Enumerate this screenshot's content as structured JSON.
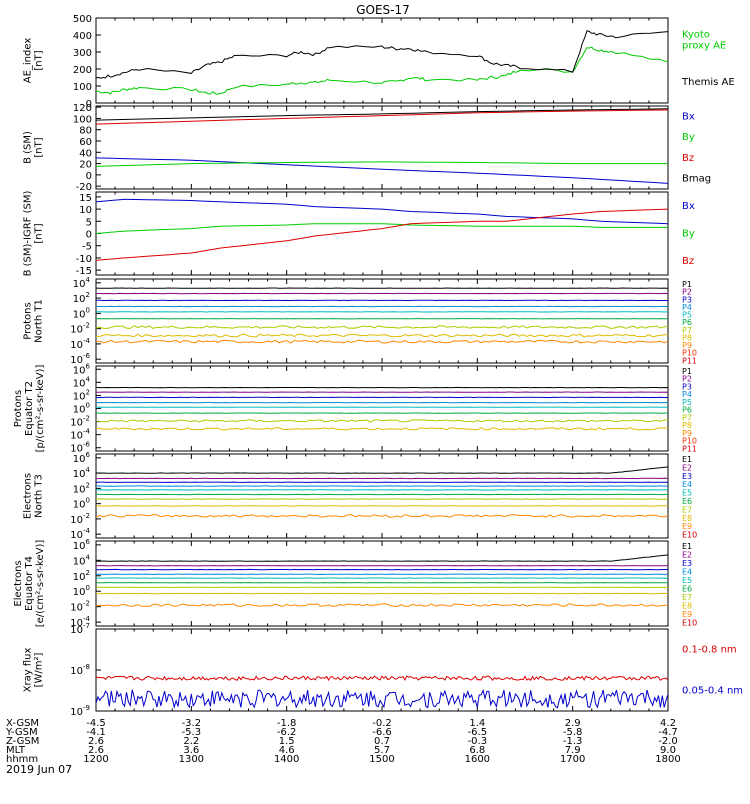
{
  "title": "GOES-17",
  "date": "2019 Jun 07",
  "colors": {
    "black": "#000000",
    "red": "#dd0000",
    "green": "#00cc00",
    "blue": "#0000cc",
    "p_channels": [
      "#000000",
      "#880088",
      "#0000cc",
      "#0088dd",
      "#00bbbb",
      "#00aa44",
      "#aacc00",
      "#ddbb00",
      "#ff8800",
      "#ee3300",
      "#cc0000"
    ],
    "e_channels": [
      "#000000",
      "#880088",
      "#0000cc",
      "#0088dd",
      "#00bbbb",
      "#00aa44",
      "#aacc00",
      "#ddbb00",
      "#ff8800",
      "#cc0000"
    ]
  },
  "chart_data": [
    {
      "id": "ae",
      "type": "line",
      "ylabel": [
        "AE_index",
        "[nT]"
      ],
      "ylim": [
        0,
        500
      ],
      "yticks": [
        "0",
        "100",
        "200",
        "300",
        "400",
        "500"
      ],
      "series": [
        {
          "name": "Kyoto proxy AE",
          "legend": [
            "Kyoto",
            "proxy AE"
          ],
          "color": "#00cc00",
          "x": [
            1200,
            1215,
            1230,
            1245,
            1300,
            1315,
            1330,
            1345,
            1400,
            1415,
            1430,
            1445,
            1500,
            1515,
            1530,
            1545,
            1600,
            1615,
            1630,
            1645,
            1700,
            1715,
            1730,
            1745,
            1800
          ],
          "y": [
            70,
            60,
            80,
            90,
            80,
            60,
            55,
            95,
            110,
            120,
            120,
            135,
            120,
            125,
            150,
            140,
            135,
            150,
            160,
            200,
            185,
            330,
            310,
            300,
            240
          ]
        },
        {
          "name": "Themis AE",
          "legend": [
            "Themis AE"
          ],
          "color": "#000000",
          "x": [
            1200,
            1215,
            1230,
            1245,
            1300,
            1315,
            1330,
            1345,
            1400,
            1415,
            1430,
            1445,
            1500,
            1515,
            1530,
            1545,
            1600,
            1615,
            1630,
            1645,
            1700,
            1715,
            1730,
            1745,
            1800
          ],
          "y": [
            145,
            160,
            180,
            200,
            175,
            220,
            240,
            275,
            280,
            300,
            285,
            330,
            330,
            320,
            320,
            300,
            280,
            235,
            220,
            210,
            185,
            420,
            400,
            390,
            420
          ]
        }
      ]
    },
    {
      "id": "bsm",
      "type": "line",
      "ylabel": [
        "B (SM)",
        "[nT]"
      ],
      "ylim": [
        -25,
        122
      ],
      "ytickvals": [
        -20,
        0,
        20,
        40,
        60,
        80,
        100,
        120
      ],
      "yticks": [
        "-20",
        "0",
        "20",
        "40",
        "60",
        "80",
        "100",
        "120"
      ],
      "series": [
        {
          "name": "Bx",
          "legend": [
            "Bx"
          ],
          "color": "#0000cc",
          "x": [
            1200,
            1300,
            1400,
            1500,
            1600,
            1700,
            1800
          ],
          "y": [
            30,
            26,
            18,
            10,
            3,
            -5,
            -15
          ]
        },
        {
          "name": "By",
          "legend": [
            "By"
          ],
          "color": "#00cc00",
          "x": [
            1200,
            1300,
            1400,
            1500,
            1600,
            1700,
            1800
          ],
          "y": [
            15,
            20,
            22,
            23,
            22,
            20,
            20
          ]
        },
        {
          "name": "Bz",
          "legend": [
            "Bz"
          ],
          "color": "#dd0000",
          "x": [
            1200,
            1300,
            1400,
            1500,
            1600,
            1700,
            1800
          ],
          "y": [
            90,
            95,
            100,
            105,
            110,
            113,
            115
          ]
        },
        {
          "name": "Bmag",
          "legend": [
            "Bmag"
          ],
          "color": "#000000",
          "x": [
            1200,
            1300,
            1400,
            1500,
            1600,
            1700,
            1800
          ],
          "y": [
            97,
            101,
            105,
            108,
            112,
            115,
            117
          ]
        }
      ]
    },
    {
      "id": "bigrf",
      "type": "line",
      "ylabel": [
        "B (SM)-IGRF (SM)",
        "[nT]"
      ],
      "ylim": [
        -17,
        17
      ],
      "ytickvals": [
        -15,
        -10,
        -5,
        0,
        5,
        10,
        15
      ],
      "yticks": [
        "-15",
        "-10",
        "-5",
        "0",
        "5",
        "10",
        "15"
      ],
      "series": [
        {
          "name": "Bx",
          "legend": [
            "Bx"
          ],
          "color": "#0000cc",
          "x": [
            1200,
            1230,
            1300,
            1330,
            1400,
            1430,
            1500,
            1530,
            1600,
            1630,
            1700,
            1730,
            1800
          ],
          "y": [
            13,
            14,
            13.5,
            13,
            12,
            11,
            10,
            9,
            8,
            7,
            6,
            5,
            4
          ]
        },
        {
          "name": "By",
          "legend": [
            "By"
          ],
          "color": "#00cc00",
          "x": [
            1200,
            1230,
            1300,
            1330,
            1400,
            1430,
            1500,
            1530,
            1600,
            1630,
            1700,
            1730,
            1800
          ],
          "y": [
            0,
            1,
            2,
            3,
            3.5,
            4,
            4,
            3.5,
            3,
            3,
            3,
            2.5,
            2.5
          ]
        },
        {
          "name": "Bz",
          "legend": [
            "Bz"
          ],
          "color": "#dd0000",
          "x": [
            1200,
            1230,
            1300,
            1330,
            1400,
            1430,
            1500,
            1530,
            1600,
            1630,
            1700,
            1730,
            1800
          ],
          "y": [
            -11,
            -10,
            -8,
            -6,
            -3,
            -1,
            2,
            4,
            5,
            5,
            8,
            9,
            10
          ]
        }
      ]
    },
    {
      "id": "pnorth",
      "type": "line",
      "log": true,
      "ylabel": [
        "Protons",
        "North T1"
      ],
      "ylim": [
        -6.5,
        4.5
      ],
      "ytickexps": [
        -6,
        -4,
        -2,
        0,
        2,
        4
      ],
      "legend": [
        "P1",
        "P2",
        "P3",
        "P4",
        "P5",
        "P6",
        "P7",
        "P8",
        "P9",
        "P10",
        "P11"
      ],
      "levels": [
        3.3,
        2.6,
        1.7,
        0.9,
        0.2,
        -0.7,
        -1.8,
        -2.9,
        -3.7
      ]
    },
    {
      "id": "pequator",
      "type": "line",
      "log": true,
      "ylabel": [
        "Protons",
        "Equator T2",
        "[p/(cm²-s-sr-keV)]"
      ],
      "ylim": [
        -6.5,
        6.5
      ],
      "ytickexps": [
        -6,
        -4,
        -2,
        0,
        2,
        4,
        6
      ],
      "legend": [
        "P1",
        "P2",
        "P3",
        "P4",
        "P5",
        "P6",
        "P7",
        "P8",
        "P9",
        "P10",
        "P11"
      ],
      "levels": [
        3.2,
        2.5,
        1.7,
        0.9,
        0.2,
        -0.7,
        -1.9,
        -3.1
      ]
    },
    {
      "id": "enorth",
      "type": "line",
      "log": true,
      "ylabel": [
        "Electrons",
        "North T3"
      ],
      "ylim": [
        -4.5,
        6.5
      ],
      "ytickexps": [
        -4,
        -2,
        0,
        2,
        4,
        6
      ],
      "legend": [
        "E1",
        "E2",
        "E3",
        "E4",
        "E5",
        "E6",
        "E7",
        "E8",
        "E9",
        "E10"
      ],
      "levels": [
        4.0,
        3.3,
        2.8,
        2.3,
        1.8,
        1.2,
        0.6,
        -0.3,
        -1.6
      ]
    },
    {
      "id": "eequator",
      "type": "line",
      "log": true,
      "ylabel": [
        "Electrons",
        "Equator T4",
        "[e/(cm²-s-sr-keV)]"
      ],
      "ylim": [
        -4.5,
        6.5
      ],
      "ytickexps": [
        -4,
        -2,
        0,
        2,
        4,
        6
      ],
      "legend": [
        "E1",
        "E2",
        "E3",
        "E4",
        "E5",
        "E6",
        "E7",
        "E8",
        "E9",
        "E10"
      ],
      "levels": [
        3.9,
        3.3,
        2.8,
        2.2,
        1.7,
        1.1,
        0.5,
        -0.3,
        -1.8
      ]
    },
    {
      "id": "xray",
      "type": "line",
      "log": true,
      "ylabel": [
        "Xray flux",
        "[W/m²]"
      ],
      "ylim": [
        -9,
        -7
      ],
      "ytickexps": [
        -9,
        -8,
        -7
      ],
      "series": [
        {
          "name": "0.1-0.8 nm",
          "legend": [
            "0.1-0.8 nm"
          ],
          "color": "#dd0000",
          "level": -8.2
        },
        {
          "name": "0.05-0.4 nm",
          "legend": [
            "0.05-0.4 nm"
          ],
          "color": "#0000cc",
          "level": -8.7
        }
      ]
    }
  ],
  "xaxis": {
    "xlim": [
      1200,
      1800
    ],
    "xtickvals": [
      1200,
      1300,
      1400,
      1500,
      1600,
      1700,
      1800
    ],
    "rows": [
      {
        "label": "X-GSM",
        "values": [
          "-4.5",
          "-3.2",
          "-1.8",
          "-0.2",
          "1.4",
          "2.9",
          "4.2"
        ]
      },
      {
        "label": "Y-GSM",
        "values": [
          "-4.1",
          "-5.3",
          "-6.2",
          "-6.6",
          "-6.5",
          "-5.8",
          "-4.7"
        ]
      },
      {
        "label": "Z-GSM",
        "values": [
          "2.6",
          "2.2",
          "1.5",
          "0.7",
          "-0.3",
          "-1.3",
          "-2.0"
        ]
      },
      {
        "label": "MLT",
        "values": [
          "2.6",
          "3.6",
          "4.6",
          "5.7",
          "6.8",
          "7.9",
          "9.0"
        ]
      },
      {
        "label": "hhmm",
        "values": [
          "1200",
          "1300",
          "1400",
          "1500",
          "1600",
          "1700",
          "1800"
        ]
      }
    ]
  }
}
